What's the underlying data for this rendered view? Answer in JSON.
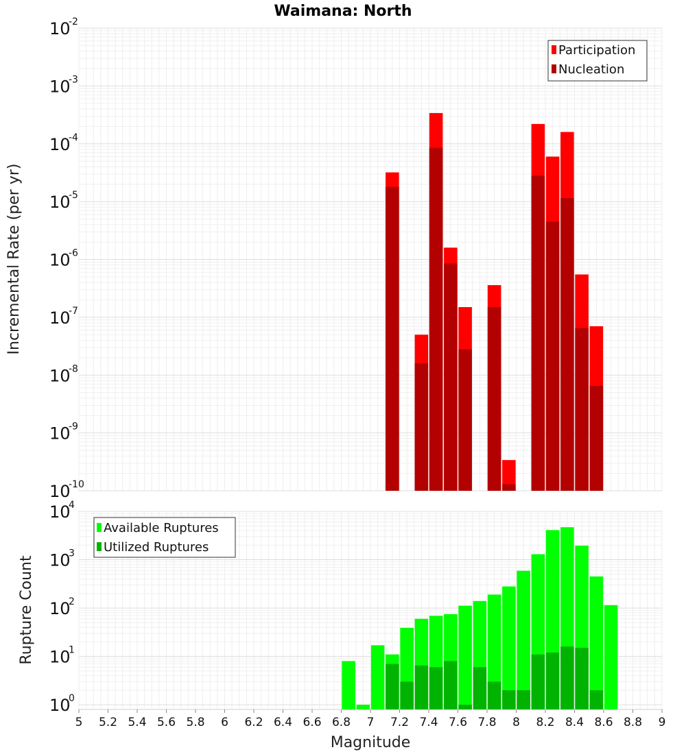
{
  "chart_data": [
    {
      "type": "bar",
      "title": "Waimana: North",
      "ylabel": "Incremental Rate (per yr)",
      "xlabel": "",
      "yscale": "log",
      "ylim": [
        1e-10,
        0.01
      ],
      "xlim": [
        5,
        9
      ],
      "y_ticks": [
        {
          "base": "10",
          "exp": "-10"
        },
        {
          "base": "10",
          "exp": "-9"
        },
        {
          "base": "10",
          "exp": "-8"
        },
        {
          "base": "10",
          "exp": "-7"
        },
        {
          "base": "10",
          "exp": "-6"
        },
        {
          "base": "10",
          "exp": "-5"
        },
        {
          "base": "10",
          "exp": "-4"
        },
        {
          "base": "10",
          "exp": "-3"
        },
        {
          "base": "10",
          "exp": "-2"
        }
      ],
      "x": [
        7.15,
        7.35,
        7.45,
        7.55,
        7.65,
        7.85,
        7.95,
        8.15,
        8.25,
        8.35,
        8.45,
        8.55
      ],
      "series": [
        {
          "name": "Participation",
          "color": "#ff0000",
          "values": [
            3.2e-05,
            5e-08,
            0.00034,
            1.6e-06,
            1.5e-07,
            3.6e-07,
            3.4e-10,
            0.00022,
            6e-05,
            0.00016,
            5.5e-07,
            7e-08
          ]
        },
        {
          "name": "Nucleation",
          "color": "#b30000",
          "values": [
            1.8e-05,
            1.6e-08,
            8.5e-05,
            8.5e-07,
            2.8e-08,
            1.5e-07,
            1.3e-10,
            2.8e-05,
            4.5e-06,
            1.15e-05,
            6.5e-08,
            6.5e-09
          ]
        }
      ],
      "legend": "top-right",
      "grid": true
    },
    {
      "type": "bar",
      "title": "",
      "ylabel": "Rupture Count",
      "xlabel": "Magnitude",
      "yscale": "log",
      "ylim": [
        0.8,
        10000
      ],
      "xlim": [
        5,
        9
      ],
      "y_ticks": [
        {
          "base": "10",
          "exp": "0"
        },
        {
          "base": "10",
          "exp": "1"
        },
        {
          "base": "10",
          "exp": "2"
        },
        {
          "base": "10",
          "exp": "3"
        },
        {
          "base": "10",
          "exp": "4"
        }
      ],
      "x_ticks": [
        "5",
        "5.2",
        "5.4",
        "5.6",
        "5.8",
        "6",
        "6.2",
        "6.4",
        "6.6",
        "6.8",
        "7",
        "7.2",
        "7.4",
        "7.6",
        "7.8",
        "8",
        "8.2",
        "8.4",
        "8.6",
        "8.8",
        "9"
      ],
      "x": [
        6.85,
        6.95,
        7.05,
        7.15,
        7.25,
        7.35,
        7.45,
        7.55,
        7.65,
        7.75,
        7.85,
        7.95,
        8.05,
        8.15,
        8.25,
        8.35,
        8.45,
        8.55,
        8.65
      ],
      "series": [
        {
          "name": "Available Ruptures",
          "color": "#00ff00",
          "values": [
            8,
            1,
            17,
            11,
            39,
            60,
            69,
            75,
            112,
            140,
            190,
            280,
            590,
            1300,
            4100,
            4700,
            1950,
            450,
            115
          ]
        },
        {
          "name": "Utilized Ruptures",
          "color": "#00b300",
          "values": [
            0,
            0,
            0,
            7,
            3,
            6.5,
            6,
            8,
            1,
            6,
            3,
            2,
            2,
            11,
            12,
            16,
            15,
            2,
            0
          ]
        }
      ],
      "legend": "top-left",
      "grid": true
    }
  ]
}
